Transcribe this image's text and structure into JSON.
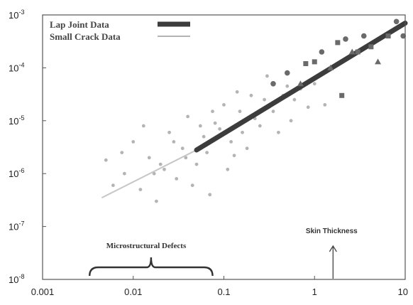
{
  "chart_data": {
    "type": "scatter",
    "xscale": "log",
    "yscale": "log",
    "xlim": [
      0.001,
      10
    ],
    "ylim": [
      1e-08,
      0.001
    ],
    "grid": false,
    "x_ticks": [
      "0.001",
      "0.01",
      "0.1",
      "1",
      "10"
    ],
    "y_ticks": [
      {
        "base": "10",
        "exp": "-3",
        "value": 0.001
      },
      {
        "base": "10",
        "exp": "-4",
        "value": 0.0001
      },
      {
        "base": "10",
        "exp": "-5",
        "value": 1e-05
      },
      {
        "base": "10",
        "exp": "-6",
        "value": 1e-06
      },
      {
        "base": "10",
        "exp": "-7",
        "value": 1e-07
      },
      {
        "base": "10",
        "exp": "-8",
        "value": 1e-08
      }
    ],
    "legend_position": "top-left",
    "series": [
      {
        "name": "Lap Joint Data",
        "color": "#3c3c3c",
        "trend_line": {
          "x": [
            0.05,
            10
          ],
          "y": [
            2.8e-06,
            0.0007
          ]
        },
        "points": [
          {
            "x": 0.35,
            "y": 5e-05,
            "shape": "circle"
          },
          {
            "x": 0.5,
            "y": 8e-05,
            "shape": "circle"
          },
          {
            "x": 0.8,
            "y": 0.00012,
            "shape": "square"
          },
          {
            "x": 1.2,
            "y": 0.0002,
            "shape": "circle"
          },
          {
            "x": 1.5,
            "y": 0.0001,
            "shape": "triangle"
          },
          {
            "x": 1.8,
            "y": 0.0003,
            "shape": "square"
          },
          {
            "x": 2.2,
            "y": 0.00035,
            "shape": "circle"
          },
          {
            "x": 2.6,
            "y": 0.0002,
            "shape": "triangle"
          },
          {
            "x": 3.0,
            "y": 0.0002,
            "shape": "square"
          },
          {
            "x": 3.5,
            "y": 0.0004,
            "shape": "circle"
          },
          {
            "x": 4.2,
            "y": 0.00025,
            "shape": "square"
          },
          {
            "x": 5.0,
            "y": 0.00013,
            "shape": "triangle"
          },
          {
            "x": 6.5,
            "y": 0.0004,
            "shape": "square"
          },
          {
            "x": 8.0,
            "y": 0.00075,
            "shape": "circle"
          },
          {
            "x": 9.5,
            "y": 0.0004,
            "shape": "circle"
          },
          {
            "x": 1.0,
            "y": 0.00013,
            "shape": "square"
          },
          {
            "x": 0.7,
            "y": 5e-05,
            "shape": "triangle"
          },
          {
            "x": 2.0,
            "y": 3e-05,
            "shape": "square"
          }
        ]
      },
      {
        "name": "Small Crack Data",
        "color": "#b4b4b4",
        "trend_line": {
          "x": [
            0.0045,
            0.05
          ],
          "y": [
            3.5e-07,
            2.8e-06
          ]
        },
        "points": [
          {
            "x": 0.005,
            "y": 1.8e-06
          },
          {
            "x": 0.006,
            "y": 6e-07
          },
          {
            "x": 0.008,
            "y": 1e-06
          },
          {
            "x": 0.01,
            "y": 4e-06
          },
          {
            "x": 0.012,
            "y": 5e-07
          },
          {
            "x": 0.015,
            "y": 2e-06
          },
          {
            "x": 0.018,
            "y": 3e-07
          },
          {
            "x": 0.02,
            "y": 1.5e-06
          },
          {
            "x": 0.025,
            "y": 6e-06
          },
          {
            "x": 0.03,
            "y": 8e-07
          },
          {
            "x": 0.035,
            "y": 3e-06
          },
          {
            "x": 0.04,
            "y": 1.2e-05
          },
          {
            "x": 0.05,
            "y": 1.5e-06
          },
          {
            "x": 0.06,
            "y": 5e-06
          },
          {
            "x": 0.07,
            "y": 4e-07
          },
          {
            "x": 0.08,
            "y": 9e-06
          },
          {
            "x": 0.1,
            "y": 2e-05
          },
          {
            "x": 0.12,
            "y": 4e-06
          },
          {
            "x": 0.15,
            "y": 1.5e-05
          },
          {
            "x": 0.18,
            "y": 3e-06
          },
          {
            "x": 0.2,
            "y": 3e-05
          },
          {
            "x": 0.25,
            "y": 8e-06
          },
          {
            "x": 0.3,
            "y": 7e-05
          },
          {
            "x": 0.35,
            "y": 1.5e-05
          },
          {
            "x": 0.45,
            "y": 3e-05
          },
          {
            "x": 0.55,
            "y": 1e-05
          },
          {
            "x": 0.7,
            "y": 4e-05
          },
          {
            "x": 0.85,
            "y": 1.8e-05
          },
          {
            "x": 1.0,
            "y": 5e-05
          },
          {
            "x": 1.3,
            "y": 2e-05
          },
          {
            "x": 0.022,
            "y": 1.2e-06
          },
          {
            "x": 0.045,
            "y": 6e-07
          },
          {
            "x": 0.065,
            "y": 2.5e-06
          },
          {
            "x": 0.09,
            "y": 7e-06
          },
          {
            "x": 0.11,
            "y": 1.2e-06
          },
          {
            "x": 0.14,
            "y": 3.5e-05
          },
          {
            "x": 0.16,
            "y": 6e-06
          },
          {
            "x": 0.22,
            "y": 1.1e-05
          },
          {
            "x": 0.28,
            "y": 2.5e-05
          },
          {
            "x": 0.4,
            "y": 6e-06
          },
          {
            "x": 0.5,
            "y": 4.5e-05
          },
          {
            "x": 0.6,
            "y": 2.5e-05
          },
          {
            "x": 0.013,
            "y": 8e-06
          },
          {
            "x": 0.0075,
            "y": 2.5e-06
          },
          {
            "x": 0.017,
            "y": 1e-06
          },
          {
            "x": 0.028,
            "y": 4e-06
          },
          {
            "x": 0.038,
            "y": 2e-06
          },
          {
            "x": 0.055,
            "y": 8e-06
          },
          {
            "x": 0.075,
            "y": 1.5e-05
          },
          {
            "x": 0.13,
            "y": 2.2e-06
          }
        ]
      }
    ],
    "annotations": [
      {
        "text": "Microstructural Defects",
        "x_range": [
          0.0033,
          0.075
        ]
      },
      {
        "text": "Skin Thickness",
        "x": 1.6
      }
    ]
  }
}
